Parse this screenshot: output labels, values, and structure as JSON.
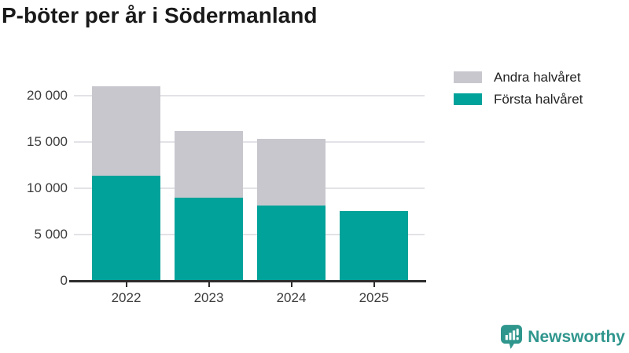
{
  "title": "P-böter per år i Södermanland",
  "chart_data": {
    "type": "bar",
    "stacked": true,
    "title": "P-böter per år i Södermanland",
    "categories": [
      "2022",
      "2023",
      "2024",
      "2025"
    ],
    "series": [
      {
        "name": "Första halvåret",
        "color": "#00a29a",
        "values": [
          11300,
          9000,
          8100,
          7500
        ]
      },
      {
        "name": "Andra halvåret",
        "color": "#c9c7ce",
        "values": [
          9700,
          7200,
          7200,
          0
        ]
      }
    ],
    "totals": [
      21000,
      16200,
      15300,
      7500
    ],
    "xlabel": "",
    "ylabel": "",
    "ylim": [
      0,
      21000
    ],
    "yticks": [
      0,
      5000,
      10000,
      15000,
      20000
    ],
    "ytick_labels": [
      "0",
      "5 000",
      "10 000",
      "15 000",
      "20 000"
    ],
    "grid": true,
    "legend_position": "top-right"
  },
  "legend": {
    "items": [
      {
        "label": "Andra halvåret",
        "color": "#c9c7ce"
      },
      {
        "label": "Första halvåret",
        "color": "#00a29a"
      }
    ]
  },
  "branding": {
    "name": "Newsworthy",
    "color": "#2f968d",
    "logo_icon": "bar-chart-speech-bubble-icon"
  },
  "colors": {
    "first_half": "#00a29a",
    "second_half": "#c9c7ce",
    "axis": "#2d2d2d",
    "gridline": "#e3e2e6"
  }
}
